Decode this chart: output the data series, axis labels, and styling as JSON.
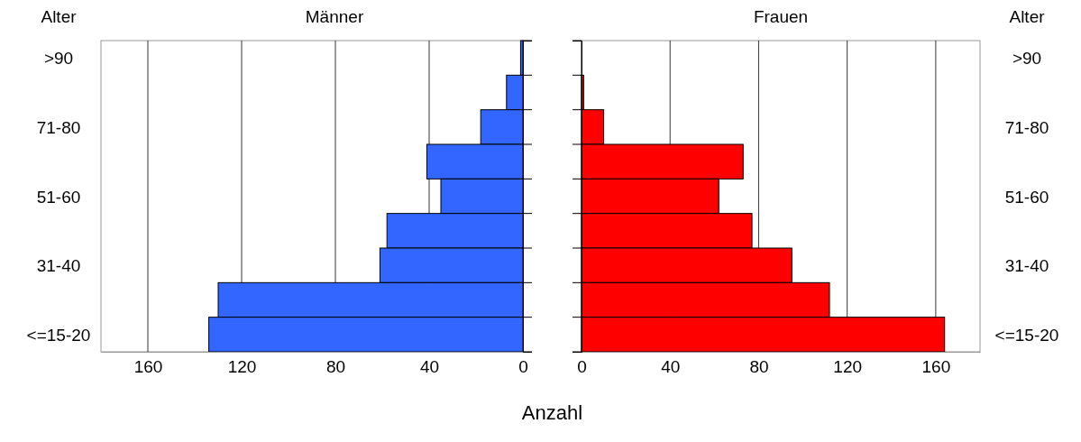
{
  "chart_data": [
    {
      "type": "bar",
      "orientation": "horizontal",
      "title": "Männer",
      "ylabel": "Alter",
      "xlabel": "Anzahl",
      "categories": [
        ">90",
        null,
        "71-80",
        null,
        "51-60",
        null,
        "31-40",
        null,
        "<=15-20"
      ],
      "values": [
        1,
        7,
        18,
        41,
        35,
        58,
        61,
        130,
        134
      ],
      "color": "#3366ff",
      "xlim": [
        180,
        0
      ],
      "xticks": [
        160,
        120,
        80,
        40,
        0
      ],
      "grid": "x"
    },
    {
      "type": "bar",
      "orientation": "horizontal",
      "title": "Frauen",
      "ylabel": "Alter",
      "categories": [
        ">90",
        null,
        "71-80",
        null,
        "51-60",
        null,
        "31-40",
        null,
        "<=15-20"
      ],
      "values": [
        0,
        1,
        10,
        73,
        62,
        77,
        95,
        112,
        164
      ],
      "color": "#ff0000",
      "xlim": [
        0,
        180
      ],
      "xticks": [
        0,
        40,
        80,
        120,
        160
      ],
      "grid": "x"
    }
  ]
}
